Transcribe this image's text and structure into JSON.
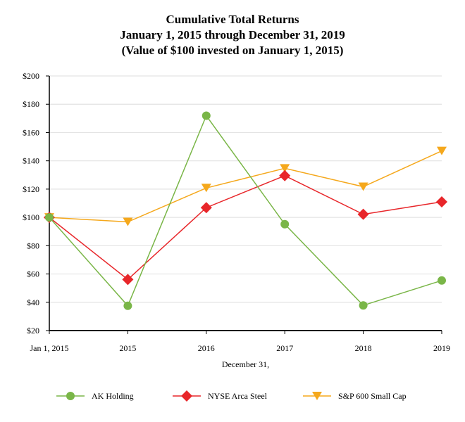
{
  "chart_data": {
    "type": "line",
    "title": [
      "Cumulative Total Returns",
      "January 1, 2015 through December 31, 2019",
      "(Value of $100 invested on January 1, 2015)"
    ],
    "xlabel": "December 31,",
    "ylabel": "",
    "categories": [
      "Jan 1, 2015",
      "2015",
      "2016",
      "2017",
      "2018",
      "2019"
    ],
    "ylim": [
      20,
      200
    ],
    "yticks": [
      20,
      40,
      60,
      80,
      100,
      120,
      140,
      160,
      180,
      200
    ],
    "ytick_format": "$",
    "grid": true,
    "legend_position": "bottom",
    "series": [
      {
        "name": "AK Holding",
        "color": "#7ab648",
        "marker": "circle",
        "values": [
          100,
          37.5,
          171.9,
          95.2,
          37.8,
          55.4
        ]
      },
      {
        "name": "NYSE Arca Steel",
        "color": "#e8262a",
        "marker": "diamond",
        "values": [
          100,
          56.1,
          106.9,
          129.5,
          102.2,
          111.0
        ]
      },
      {
        "name": "S&P 600 Small Cap",
        "color": "#f5a81c",
        "marker": "triangle-down",
        "values": [
          100,
          96.8,
          120.8,
          134.7,
          121.7,
          147.0
        ]
      }
    ]
  }
}
